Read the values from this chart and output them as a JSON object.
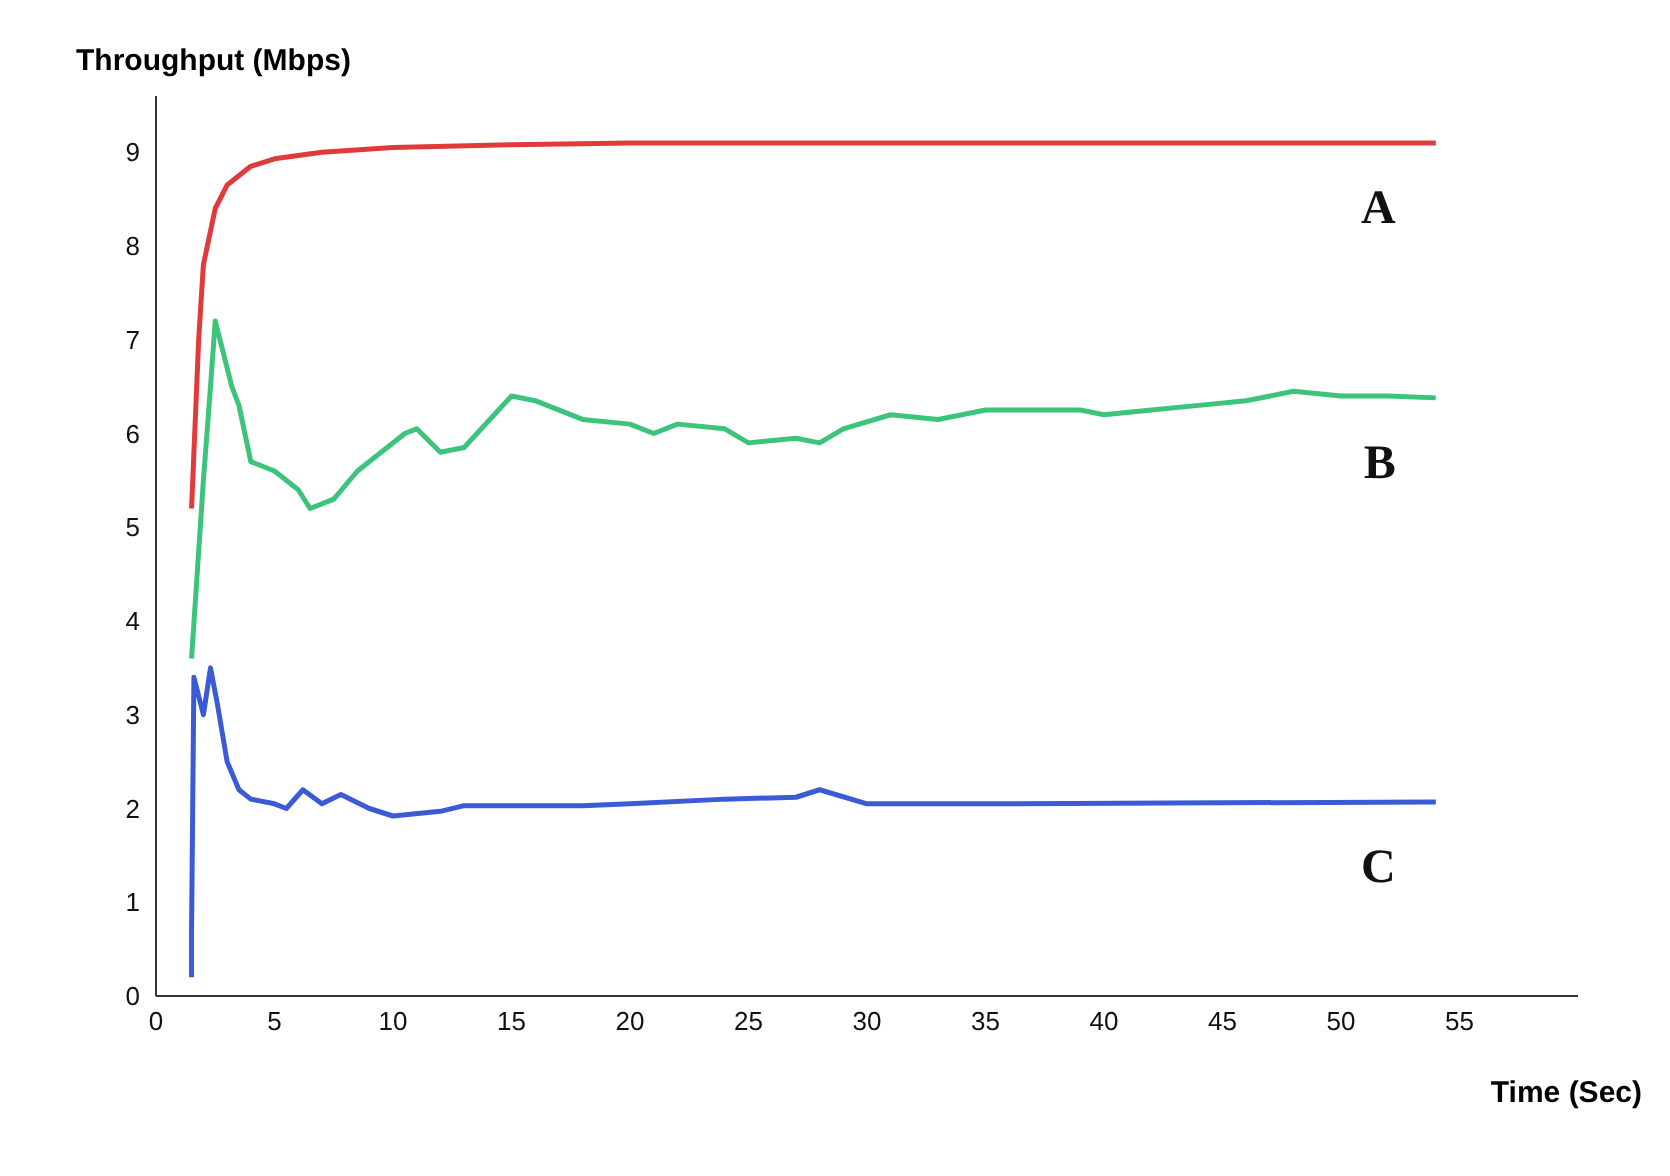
{
  "chart_data": {
    "type": "line",
    "ylabel": "Throughput (Mbps)",
    "xlabel": "Time (Sec)",
    "xlim": [
      0,
      60
    ],
    "ylim": [
      0,
      9.6
    ],
    "xticks": [
      0,
      5,
      10,
      15,
      20,
      25,
      30,
      35,
      40,
      45,
      50,
      55
    ],
    "yticks": [
      0,
      1,
      2,
      3,
      4,
      5,
      6,
      7,
      8,
      9
    ],
    "grid": false,
    "legend": false,
    "marker": "none",
    "line_style": "solid",
    "series": [
      {
        "name": "A",
        "color": "#e03a3a",
        "x": [
          1.5,
          1.8,
          2,
          2.5,
          3,
          4,
          5,
          7,
          10,
          15,
          20,
          30,
          40,
          54
        ],
        "values": [
          5.2,
          7.0,
          7.8,
          8.4,
          8.65,
          8.85,
          8.93,
          9.0,
          9.05,
          9.08,
          9.1,
          9.1,
          9.1,
          9.1
        ]
      },
      {
        "name": "B",
        "color": "#3cc47c",
        "x": [
          1.5,
          2,
          2.3,
          2.5,
          2.8,
          3.2,
          3.5,
          4,
          5,
          6,
          6.5,
          7.5,
          8.5,
          9.5,
          10.5,
          11,
          12,
          13,
          15,
          16,
          18,
          20,
          21,
          22,
          24,
          25,
          27,
          28,
          29,
          31,
          33,
          35,
          37,
          39,
          40,
          42,
          44,
          46,
          48,
          50,
          52,
          54
        ],
        "values": [
          3.6,
          5.5,
          6.5,
          7.2,
          6.9,
          6.5,
          6.3,
          5.7,
          5.6,
          5.4,
          5.2,
          5.3,
          5.6,
          5.8,
          6.0,
          6.05,
          5.8,
          5.85,
          6.4,
          6.35,
          6.15,
          6.1,
          6.0,
          6.1,
          6.05,
          5.9,
          5.95,
          5.9,
          6.05,
          6.2,
          6.15,
          6.25,
          6.25,
          6.25,
          6.2,
          6.25,
          6.3,
          6.35,
          6.45,
          6.4,
          6.4,
          6.38
        ]
      },
      {
        "name": "C",
        "color": "#3b5bd6",
        "x": [
          1.5,
          1.5,
          1.6,
          2,
          2.3,
          2.6,
          3,
          3.5,
          4,
          5,
          5.5,
          6.2,
          7,
          7.8,
          9,
          10,
          12,
          13,
          18,
          20,
          24,
          27,
          28,
          30,
          35,
          54
        ],
        "values": [
          0.2,
          0.7,
          3.4,
          3.0,
          3.5,
          3.1,
          2.5,
          2.2,
          2.1,
          2.05,
          2.0,
          2.2,
          2.05,
          2.15,
          2.0,
          1.92,
          1.97,
          2.03,
          2.03,
          2.05,
          2.1,
          2.12,
          2.2,
          2.05,
          2.05,
          2.07
        ]
      }
    ]
  }
}
